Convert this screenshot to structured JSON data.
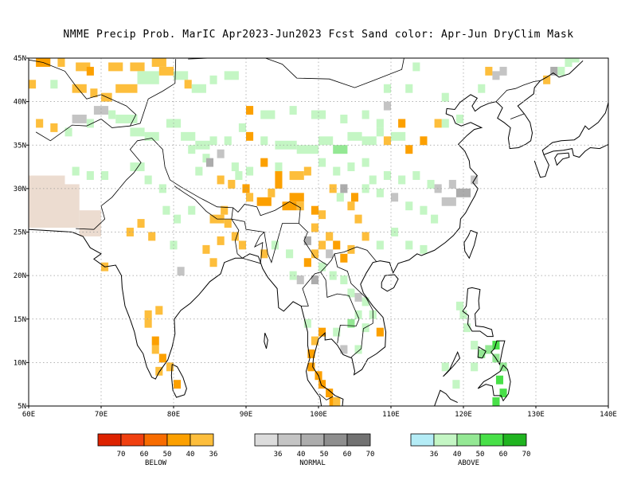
{
  "title": "NMME Precip Prob. MarIC  Apr2023-Jun2023 Fcst  Sand color: Apr-Jun DryClim Mask",
  "map": {
    "lon_range": [
      60,
      140
    ],
    "lat_range": [
      5,
      45
    ],
    "x_ticks": [
      "60E",
      "70E",
      "80E",
      "90E",
      "100E",
      "110E",
      "120E",
      "130E",
      "140E"
    ],
    "y_ticks": [
      "45N",
      "40N",
      "35N",
      "30N",
      "25N",
      "20N",
      "15N",
      "10N",
      "5N"
    ],
    "grid": true,
    "colors": {
      "sand": "#ecdcd0",
      "coast": "#000000",
      "border": "#000000"
    }
  },
  "legend": {
    "below": {
      "label": "BELOW",
      "colors": [
        "#dd2200",
        "#f04010",
        "#f86c00",
        "#fca000",
        "#fdbe3c"
      ],
      "ticks": [
        "70",
        "60",
        "50",
        "40",
        "36"
      ]
    },
    "normal": {
      "label": "NORMAL",
      "colors": [
        "#dcdcdc",
        "#c4c4c4",
        "#acacac",
        "#8e8e8e",
        "#727272"
      ],
      "ticks": [
        "36",
        "40",
        "50",
        "60",
        "70"
      ]
    },
    "above": {
      "label": "ABOVE",
      "colors": [
        "#b4ecf6",
        "#c4f6c4",
        "#94e894",
        "#48e048",
        "#20b420"
      ],
      "ticks": [
        "36",
        "40",
        "50",
        "60",
        "70"
      ]
    }
  }
}
